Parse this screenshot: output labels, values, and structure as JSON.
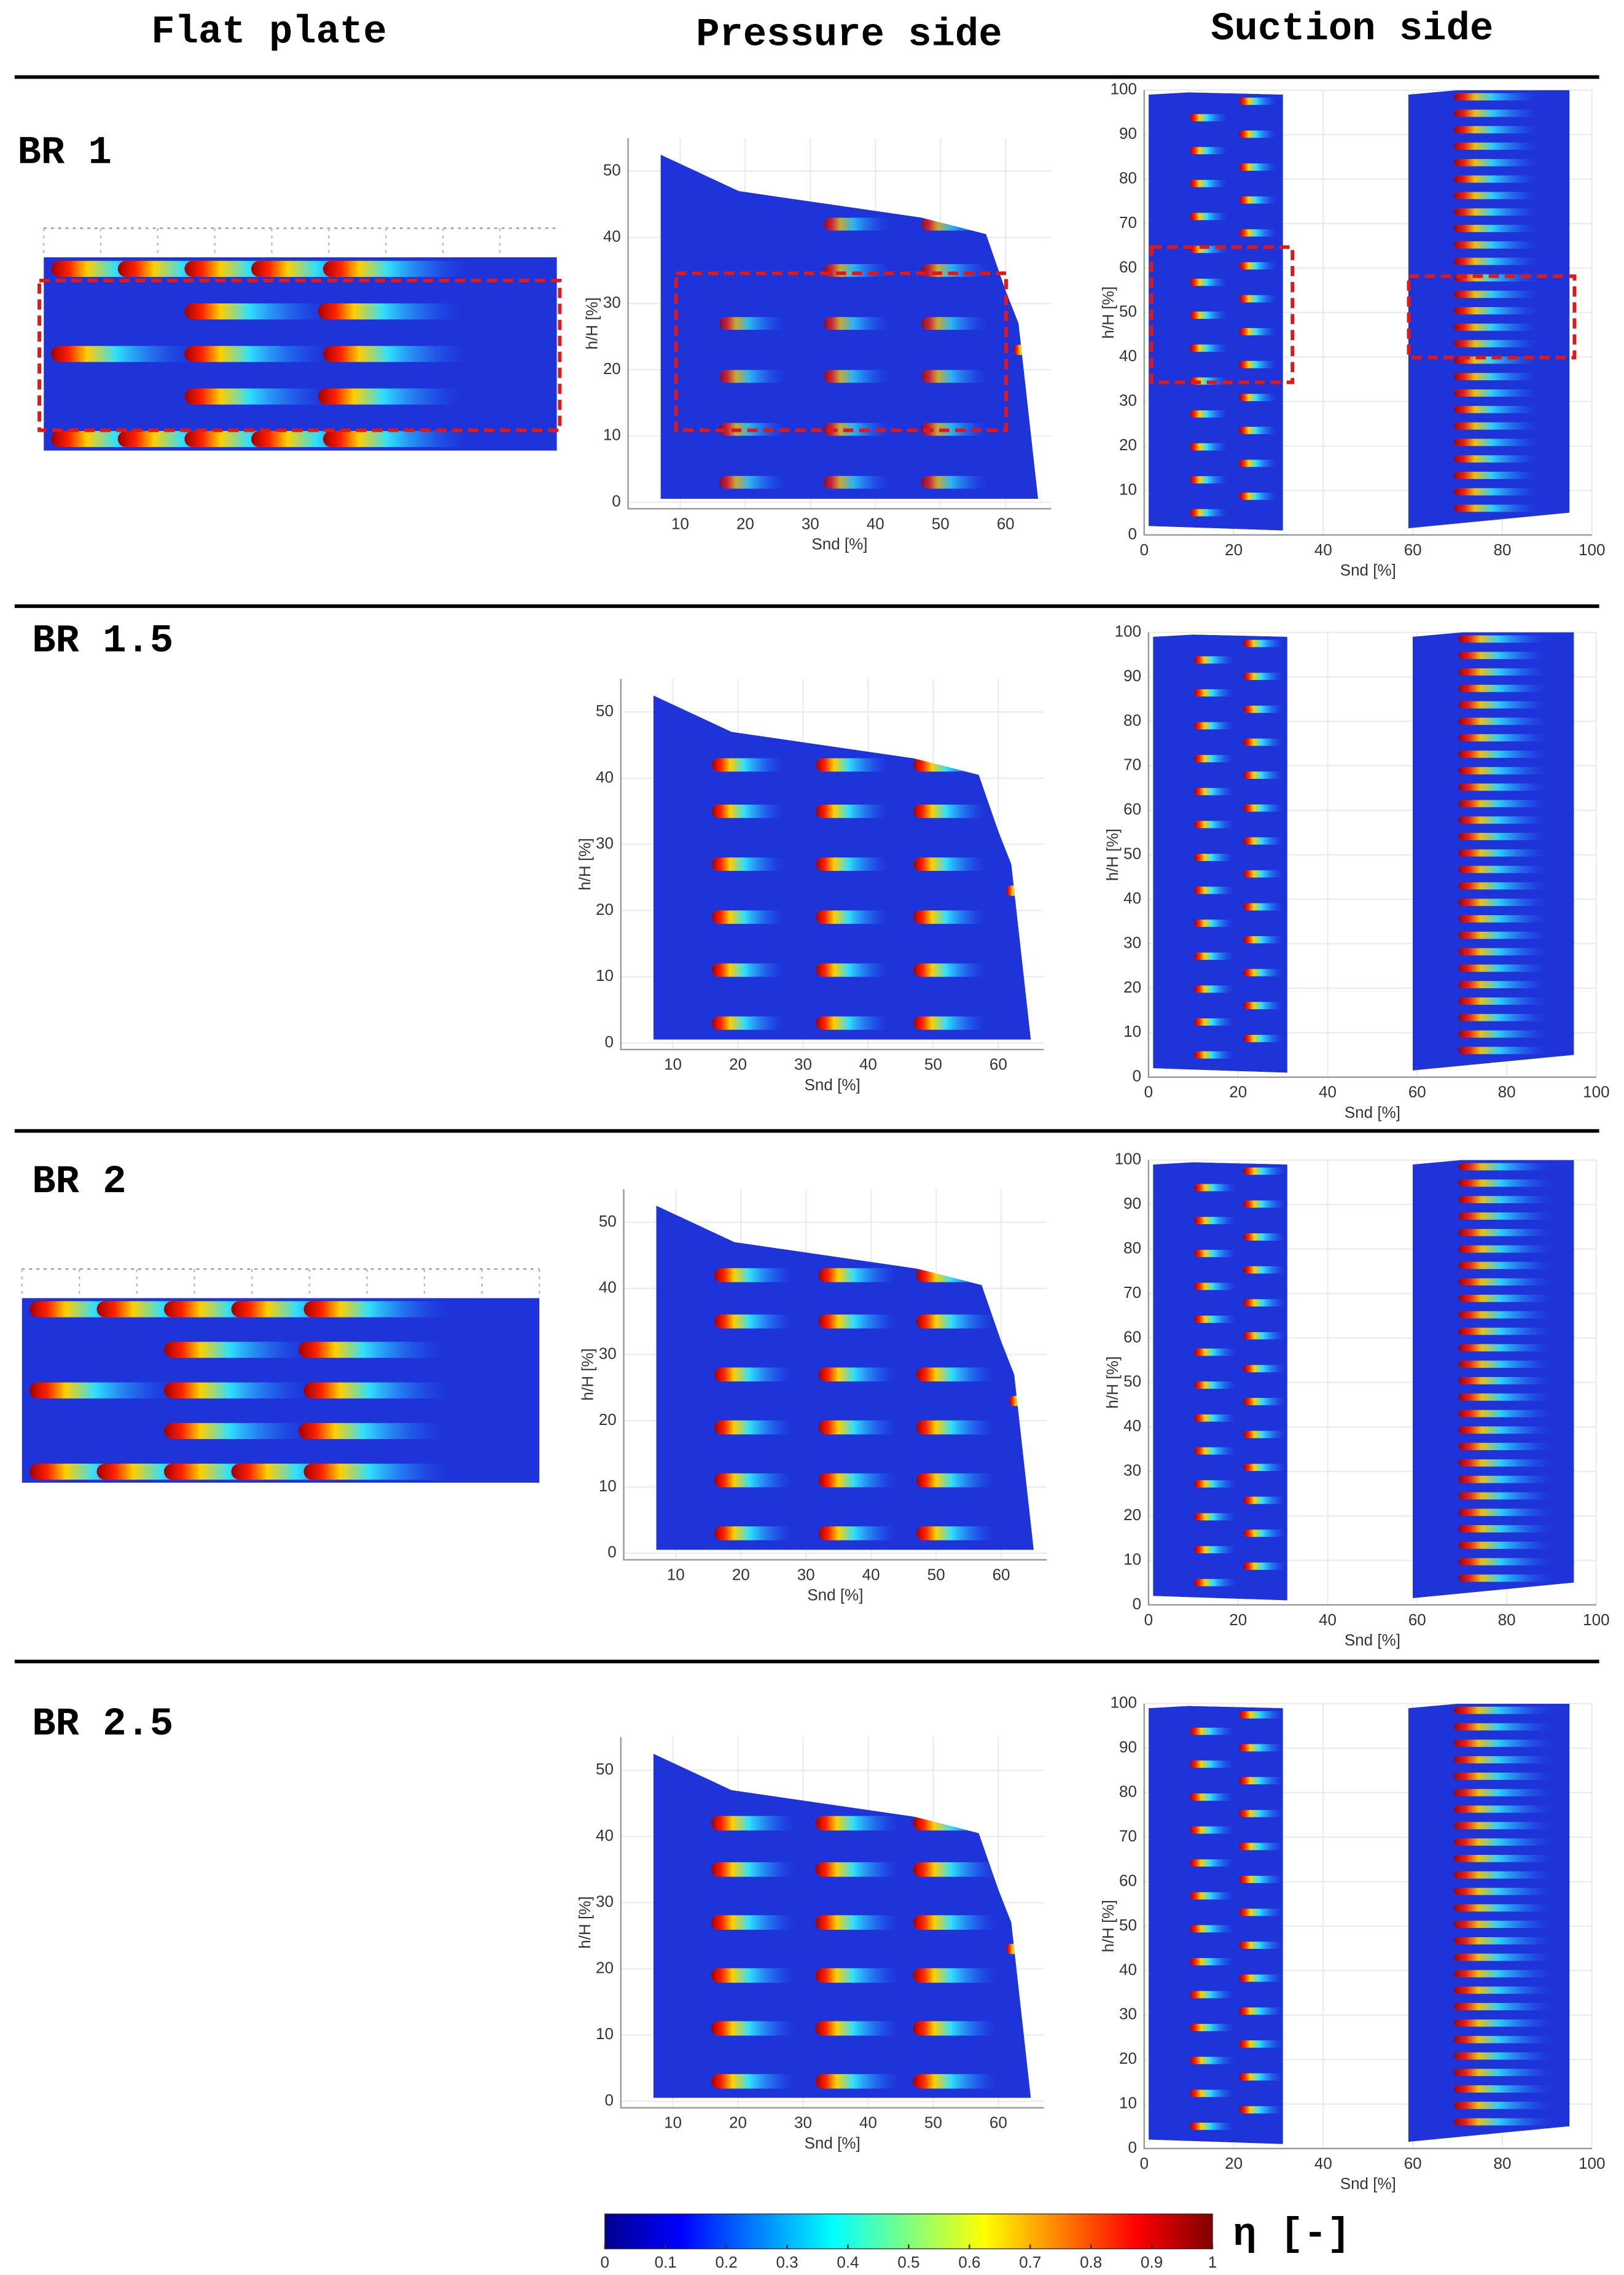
{
  "columns": [
    "Flat plate",
    "Pressure side",
    "Suction side"
  ],
  "rows": [
    {
      "label": "BR 1",
      "flat_plate": true
    },
    {
      "label": "BR 1.5",
      "flat_plate": false
    },
    {
      "label": "BR 2",
      "flat_plate": true
    },
    {
      "label": "BR 2.5",
      "flat_plate": false
    }
  ],
  "pressure_side_axes": {
    "xlabel": "Snd [%]",
    "ylabel": "h/H [%]",
    "xlim": [
      2,
      67
    ],
    "ylim": [
      -1,
      55
    ],
    "xticks": [
      10,
      20,
      30,
      40,
      50,
      60
    ],
    "yticks": [
      0,
      10,
      20,
      30,
      40,
      50
    ],
    "grid": true
  },
  "suction_side_axes": {
    "xlabel": "Snd [%]",
    "ylabel": "h/H [%]",
    "xlim": [
      0,
      100
    ],
    "ylim": [
      0,
      100
    ],
    "xticks": [
      0,
      20,
      40,
      60,
      80,
      100
    ],
    "yticks": [
      0,
      10,
      20,
      30,
      40,
      50,
      60,
      70,
      80,
      90,
      100
    ],
    "grid": true
  },
  "colorbar": {
    "label": "η [-]",
    "lim": [
      0,
      1
    ],
    "ticks": [
      0,
      0.1,
      0.2,
      0.3,
      0.4,
      0.5,
      0.6,
      0.7,
      0.8,
      0.9,
      1
    ]
  }
}
